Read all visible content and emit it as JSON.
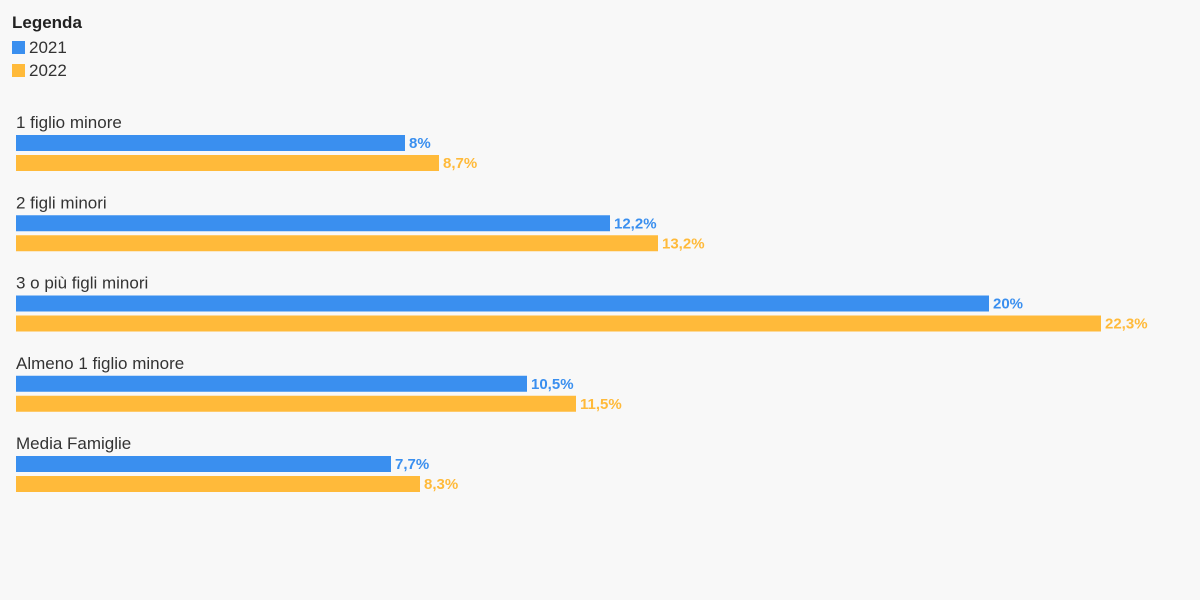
{
  "legend": {
    "title": "Legenda",
    "items": [
      {
        "label": "2021",
        "color": "#3a8fef"
      },
      {
        "label": "2022",
        "color": "#ffba3a"
      }
    ]
  },
  "chart_data": {
    "type": "bar",
    "orientation": "horizontal",
    "categories": [
      "1 figlio minore",
      "2 figli minori",
      "3 o più figli minori",
      "Almeno 1 figlio minore",
      "Media Famiglie"
    ],
    "series": [
      {
        "name": "2021",
        "color": "#3a8fef",
        "values": [
          8,
          12.2,
          20,
          10.5,
          7.7
        ],
        "labels": [
          "8%",
          "12,2%",
          "20%",
          "10,5%",
          "7,7%"
        ]
      },
      {
        "name": "2022",
        "color": "#ffba3a",
        "values": [
          8.7,
          13.2,
          22.3,
          11.5,
          8.3
        ],
        "labels": [
          "8,7%",
          "13,2%",
          "22,3%",
          "11,5%",
          "8,3%"
        ]
      }
    ],
    "xlim": [
      0,
      22.3
    ],
    "grid": false,
    "legend_position": "top-left"
  }
}
